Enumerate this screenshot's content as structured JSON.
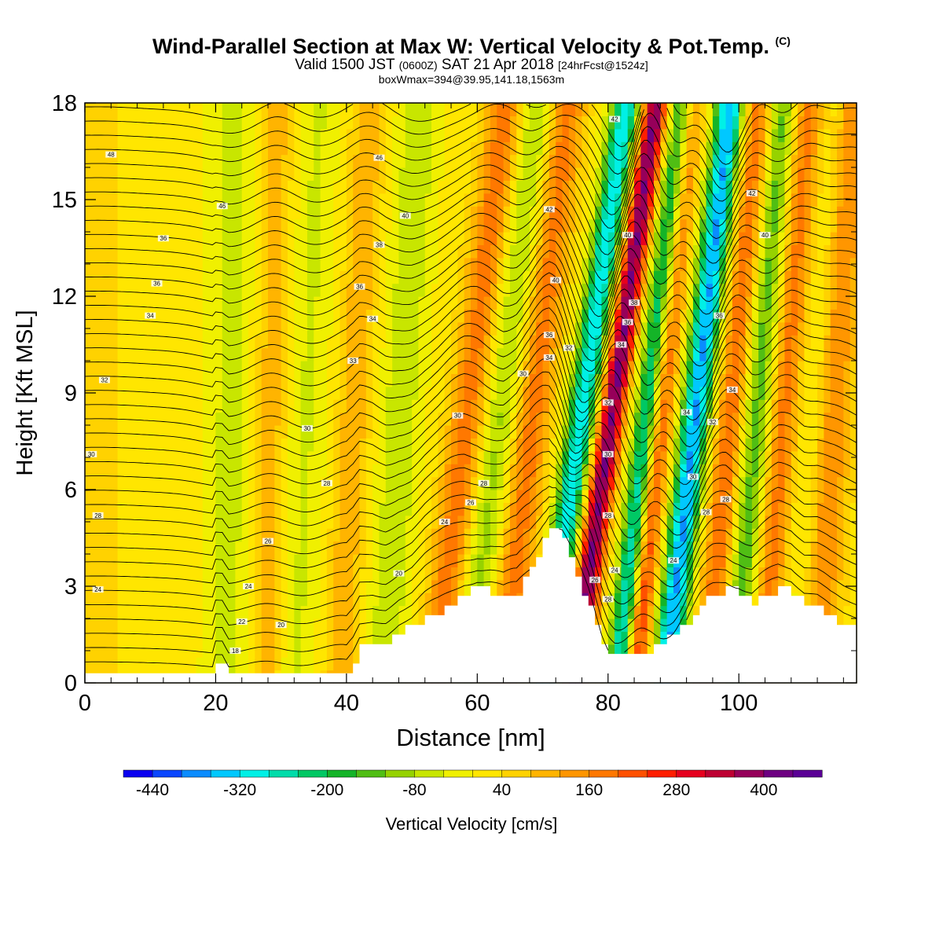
{
  "title": {
    "main": "Wind-Parallel Section at Max W: Vertical Velocity & Pot.Temp.",
    "copyright": "(C)",
    "valid_prefix": "Valid 1500 JST",
    "valid_utc": "(0600Z)",
    "valid_date": "SAT 21 Apr 2018",
    "forecast": "[24hrFcst@1524z]",
    "boxwmax": "boxWmax=394@39.95,141.18,1563m"
  },
  "chart_data": {
    "type": "heatmap",
    "xlabel": "Distance [nm]",
    "ylabel": "Height [Kft MSL]",
    "xlim": [
      0,
      118
    ],
    "ylim": [
      0,
      18
    ],
    "xticks": [
      0,
      20,
      40,
      60,
      80,
      100
    ],
    "yticks": [
      0,
      3,
      6,
      9,
      12,
      15,
      18
    ],
    "colorbar": {
      "label": "Vertical Velocity [cm/s]",
      "tick_labels": [
        "-440",
        "-320",
        "-200",
        "-80",
        "40",
        "160",
        "280",
        "400"
      ],
      "bins": [
        -480,
        -440,
        -400,
        -360,
        -320,
        -280,
        -240,
        -200,
        -160,
        -120,
        -80,
        -40,
        0,
        40,
        80,
        120,
        160,
        200,
        240,
        280,
        320,
        360,
        400,
        440,
        480
      ],
      "colors": [
        "#0a00f0",
        "#0a46ff",
        "#0a8cff",
        "#00c8ff",
        "#00f0e6",
        "#00dcaa",
        "#00c864",
        "#14b428",
        "#50be14",
        "#96d200",
        "#c8e600",
        "#f0f000",
        "#ffe600",
        "#ffd200",
        "#ffb400",
        "#ff9600",
        "#ff7800",
        "#ff5000",
        "#ff1e00",
        "#e6001e",
        "#be0032",
        "#96005a",
        "#6e0082",
        "#5a0096"
      ]
    },
    "vertical_velocity_features": [
      {
        "x": 2,
        "w": 6,
        "tilt": 0.0,
        "value": 30
      },
      {
        "x": 22,
        "w": 3.5,
        "tilt": 0.05,
        "value": -70
      },
      {
        "x": 28,
        "w": 2.5,
        "tilt": 0.1,
        "value": 90
      },
      {
        "x": 33,
        "w": 3,
        "tilt": 0.2,
        "value": -60
      },
      {
        "x": 40,
        "w": 2.5,
        "tilt": 0.25,
        "value": 100
      },
      {
        "x": 47,
        "w": 3,
        "tilt": 0.3,
        "value": -90
      },
      {
        "x": 56,
        "w": 3,
        "tilt": 0.6,
        "value": 170
      },
      {
        "x": 61,
        "w": 3,
        "tilt": 0.6,
        "value": -120
      },
      {
        "x": 66,
        "w": 3,
        "tilt": 0.55,
        "value": 170
      },
      {
        "x": 73,
        "w": 2.2,
        "tilt": 0.7,
        "value": -330
      },
      {
        "x": 77.5,
        "w": 2,
        "tilt": 0.7,
        "value": 394
      },
      {
        "x": 84,
        "w": 2,
        "tilt": 0.55,
        "value": -430
      },
      {
        "x": 85.5,
        "w": 2,
        "tilt": 0.5,
        "value": 360
      },
      {
        "x": 91,
        "w": 2.2,
        "tilt": 0.55,
        "value": -380
      },
      {
        "x": 97,
        "w": 2.5,
        "tilt": 0.45,
        "value": 190
      },
      {
        "x": 101,
        "w": 2.5,
        "tilt": 0.4,
        "value": -180
      },
      {
        "x": 105,
        "w": 2.5,
        "tilt": 0.4,
        "value": 170
      },
      {
        "x": 110,
        "w": 2.5,
        "tilt": 0.35,
        "value": -60
      },
      {
        "x": 113,
        "w": 3,
        "tilt": 0.3,
        "value": 150
      }
    ],
    "terrain": {
      "x": [
        0,
        19.5,
        20,
        21,
        22,
        24,
        28,
        32,
        36,
        38,
        40,
        41,
        42,
        44,
        46,
        48,
        50,
        52,
        54,
        56,
        58,
        60,
        62,
        64,
        66,
        68,
        70,
        71,
        72,
        73,
        74,
        75,
        76,
        77,
        78,
        79,
        80,
        81,
        82,
        84,
        86,
        88,
        90,
        92,
        94,
        96,
        98,
        100,
        102,
        104,
        106,
        108,
        110,
        112,
        114,
        116,
        118
      ],
      "y": [
        0.3,
        0.3,
        0.7,
        0.7,
        0.3,
        0.3,
        0.3,
        0.3,
        0.3,
        0.3,
        0.3,
        0.6,
        1.1,
        1.3,
        1.3,
        1.6,
        1.7,
        2.0,
        2.2,
        2.5,
        2.8,
        2.9,
        2.8,
        2.6,
        2.8,
        3.5,
        4.5,
        4.9,
        4.9,
        4.5,
        3.8,
        3.2,
        2.7,
        2.3,
        1.8,
        1.3,
        1.0,
        0.9,
        0.9,
        0.9,
        1.0,
        1.2,
        1.5,
        1.9,
        2.4,
        2.7,
        2.9,
        2.8,
        2.5,
        2.7,
        2.9,
        2.8,
        2.4,
        2.3,
        2.0,
        1.8,
        1.7
      ]
    },
    "potential_temperature_contours": {
      "levels": [
        16,
        17,
        18,
        19,
        20,
        21,
        22,
        23,
        24,
        25,
        26,
        27,
        28,
        29,
        30,
        31,
        32,
        33,
        34,
        35,
        36,
        37,
        38,
        39,
        40,
        41,
        42,
        43,
        44,
        45,
        46,
        47,
        48
      ],
      "labels": [
        {
          "text": "48",
          "x": 4,
          "y": 16.4
        },
        {
          "text": "46",
          "x": 21,
          "y": 14.8
        },
        {
          "text": "36",
          "x": 12,
          "y": 13.8
        },
        {
          "text": "36",
          "x": 11,
          "y": 12.4
        },
        {
          "text": "34",
          "x": 10,
          "y": 11.4
        },
        {
          "text": "32",
          "x": 3,
          "y": 9.4
        },
        {
          "text": "30",
          "x": 1,
          "y": 7.1
        },
        {
          "text": "28",
          "x": 2,
          "y": 5.2
        },
        {
          "text": "24",
          "x": 2,
          "y": 2.9
        },
        {
          "text": "30",
          "x": 34,
          "y": 7.9
        },
        {
          "text": "28",
          "x": 37,
          "y": 6.2
        },
        {
          "text": "26",
          "x": 28,
          "y": 4.4
        },
        {
          "text": "24",
          "x": 25,
          "y": 3.0
        },
        {
          "text": "22",
          "x": 24,
          "y": 1.9
        },
        {
          "text": "20",
          "x": 30,
          "y": 1.8
        },
        {
          "text": "18",
          "x": 23,
          "y": 1.0
        },
        {
          "text": "46",
          "x": 45,
          "y": 16.3
        },
        {
          "text": "40",
          "x": 49,
          "y": 14.5
        },
        {
          "text": "38",
          "x": 45,
          "y": 13.6
        },
        {
          "text": "36",
          "x": 42,
          "y": 12.3
        },
        {
          "text": "34",
          "x": 44,
          "y": 11.3
        },
        {
          "text": "33",
          "x": 41,
          "y": 10.0
        },
        {
          "text": "30",
          "x": 57,
          "y": 8.3
        },
        {
          "text": "28",
          "x": 61,
          "y": 6.2
        },
        {
          "text": "26",
          "x": 59,
          "y": 5.6
        },
        {
          "text": "24",
          "x": 55,
          "y": 5.0
        },
        {
          "text": "20",
          "x": 48,
          "y": 3.4
        },
        {
          "text": "42",
          "x": 71,
          "y": 14.7
        },
        {
          "text": "40",
          "x": 72,
          "y": 12.5
        },
        {
          "text": "36",
          "x": 71,
          "y": 10.8
        },
        {
          "text": "32",
          "x": 74,
          "y": 10.4
        },
        {
          "text": "34",
          "x": 71,
          "y": 10.1
        },
        {
          "text": "30",
          "x": 67,
          "y": 9.6
        },
        {
          "text": "42",
          "x": 81,
          "y": 17.5
        },
        {
          "text": "40",
          "x": 83,
          "y": 13.9
        },
        {
          "text": "38",
          "x": 84,
          "y": 11.8
        },
        {
          "text": "36",
          "x": 83,
          "y": 11.2
        },
        {
          "text": "34",
          "x": 82,
          "y": 10.5
        },
        {
          "text": "32",
          "x": 80,
          "y": 8.7
        },
        {
          "text": "30",
          "x": 80,
          "y": 7.1
        },
        {
          "text": "28",
          "x": 80,
          "y": 5.2
        },
        {
          "text": "24",
          "x": 81,
          "y": 3.5
        },
        {
          "text": "26",
          "x": 78,
          "y": 3.2
        },
        {
          "text": "28",
          "x": 80,
          "y": 2.6
        },
        {
          "text": "34",
          "x": 92,
          "y": 8.4
        },
        {
          "text": "30",
          "x": 93,
          "y": 6.4
        },
        {
          "text": "28",
          "x": 95,
          "y": 5.3
        },
        {
          "text": "24",
          "x": 90,
          "y": 3.8
        },
        {
          "text": "42",
          "x": 102,
          "y": 15.2
        },
        {
          "text": "40",
          "x": 104,
          "y": 13.9
        },
        {
          "text": "36",
          "x": 97,
          "y": 11.4
        },
        {
          "text": "34",
          "x": 99,
          "y": 9.1
        },
        {
          "text": "32",
          "x": 96,
          "y": 8.1
        },
        {
          "text": "28",
          "x": 98,
          "y": 5.7
        }
      ]
    }
  }
}
